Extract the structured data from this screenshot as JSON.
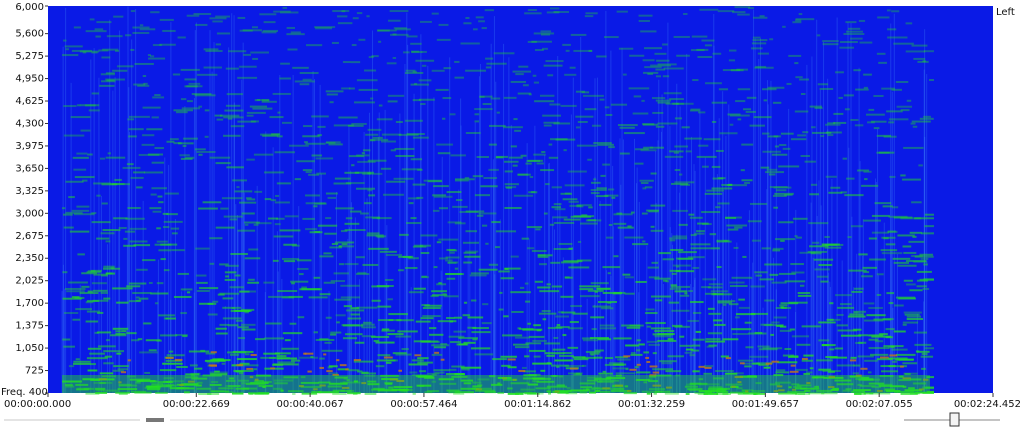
{
  "chart_data": {
    "type": "spectrogram",
    "channel_label": "Left",
    "xlim": [
      0,
      144.452
    ],
    "xticks": [
      {
        "value": 0,
        "label": "00:00:00.000"
      },
      {
        "value": 22.669,
        "label": "00:00:22.669"
      },
      {
        "value": 40.067,
        "label": "00:00:40.067"
      },
      {
        "value": 57.464,
        "label": "00:00:57.464"
      },
      {
        "value": 74.862,
        "label": "00:01:14.862"
      },
      {
        "value": 92.259,
        "label": "00:01:32.259"
      },
      {
        "value": 109.657,
        "label": "00:01:49.657"
      },
      {
        "value": 127.055,
        "label": "00:02:07.055"
      },
      {
        "value": 144.452,
        "label": "00:02:24.452"
      }
    ],
    "ylim": [
      400,
      6000
    ],
    "yticks": [
      {
        "value": 400,
        "label": "Freq. 400"
      },
      725,
      {
        "value": 1050,
        "label": "1,050"
      },
      {
        "value": 1375,
        "label": "1,375"
      },
      {
        "value": 1700,
        "label": "1,700"
      },
      {
        "value": 2025,
        "label": "2,025"
      },
      {
        "value": 2350,
        "label": "2,350"
      },
      {
        "value": 2675,
        "label": "2,675"
      },
      {
        "value": 3000,
        "label": "3,000"
      },
      {
        "value": 3325,
        "label": "3,325"
      },
      {
        "value": 3650,
        "label": "3,650"
      },
      {
        "value": 3975,
        "label": "3,975"
      },
      {
        "value": 4300,
        "label": "4,300"
      },
      {
        "value": 4625,
        "label": "4,625"
      },
      {
        "value": 4950,
        "label": "4,950"
      },
      {
        "value": 5275,
        "label": "5,275"
      },
      {
        "value": 5600,
        "label": "5,600"
      },
      {
        "value": 6000,
        "label": "6,000"
      }
    ],
    "background_color": "#0a1ae6",
    "energy_color": "#22e022"
  }
}
